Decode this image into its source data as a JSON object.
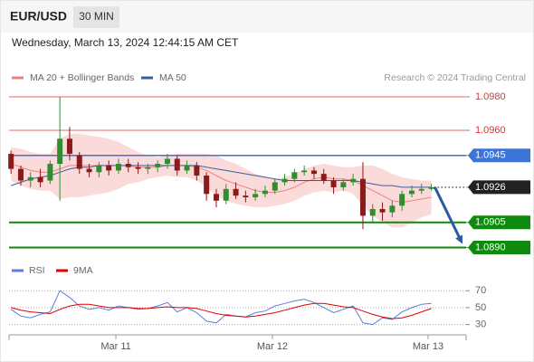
{
  "header": {
    "symbol": "EUR/USD",
    "interval": "30 MIN",
    "timestamp": "Wednesday, March 13, 2024 12:44:15 AM CET"
  },
  "chart_data": [
    {
      "type": "candlestick",
      "source": "Research © 2024 Trading Central",
      "categories": [
        null,
        null,
        null,
        null,
        null,
        null,
        null,
        null,
        null,
        null,
        null,
        null,
        null,
        null,
        null,
        null,
        null,
        null,
        null,
        null,
        null,
        null,
        null,
        null,
        null,
        null,
        null,
        null,
        null,
        null,
        null,
        null,
        null,
        null,
        null,
        null,
        null,
        null,
        null,
        null,
        null,
        null,
        null,
        null
      ],
      "open": [
        1.0946,
        1.0937,
        1.093,
        1.0932,
        1.093,
        1.094,
        1.0955,
        1.0945,
        1.0937,
        1.0935,
        1.0939,
        1.0936,
        1.094,
        1.0938,
        1.0937,
        1.0938,
        1.094,
        1.0943,
        1.0936,
        1.0939,
        1.0933,
        1.0922,
        1.0918,
        1.0925,
        1.0921,
        1.092,
        1.0922,
        1.0924,
        1.0929,
        1.0931,
        1.0935,
        1.0936,
        1.0934,
        1.093,
        1.0926,
        1.0929,
        1.0931,
        1.0909,
        1.0913,
        1.0911,
        1.0915,
        1.0922,
        1.0924,
        1.0925
      ],
      "high": [
        1.0948,
        1.0939,
        1.0935,
        1.0937,
        1.0942,
        1.098,
        1.0962,
        1.0947,
        1.094,
        1.0941,
        1.0942,
        1.0943,
        1.0943,
        1.0941,
        1.094,
        1.0942,
        1.0946,
        1.0945,
        1.0942,
        1.0941,
        1.0935,
        1.0925,
        1.0928,
        1.0929,
        1.0924,
        1.0925,
        1.0927,
        1.0931,
        1.0934,
        1.0937,
        1.0939,
        1.0938,
        1.0937,
        1.0932,
        1.0931,
        1.0934,
        1.0941,
        1.0916,
        1.0917,
        1.0918,
        1.0924,
        1.0927,
        1.0928,
        1.0928
      ],
      "low": [
        1.0934,
        1.0927,
        1.0926,
        1.0926,
        1.0928,
        1.0918,
        1.0942,
        1.0934,
        1.0932,
        1.0932,
        1.0933,
        1.0934,
        1.0935,
        1.0934,
        1.0934,
        1.0935,
        1.0937,
        1.0933,
        1.0934,
        1.093,
        1.0918,
        1.0914,
        1.0916,
        1.0919,
        1.0917,
        1.0918,
        1.092,
        1.0922,
        1.0927,
        1.0929,
        1.0933,
        1.0931,
        1.0928,
        1.0922,
        1.0924,
        1.0927,
        1.0901,
        1.0905,
        1.0906,
        1.0908,
        1.0912,
        1.092,
        1.0922,
        1.0924
      ],
      "close": [
        1.0937,
        1.093,
        1.0932,
        1.0929,
        1.094,
        1.0955,
        1.0946,
        1.0937,
        1.0935,
        1.0939,
        1.0936,
        1.094,
        1.0938,
        1.0937,
        1.0938,
        1.094,
        1.0943,
        1.0936,
        1.0939,
        1.0933,
        1.0922,
        1.0918,
        1.0925,
        1.0921,
        1.092,
        1.0922,
        1.0924,
        1.0929,
        1.0931,
        1.0935,
        1.0936,
        1.0934,
        1.093,
        1.0926,
        1.0929,
        1.0931,
        1.0909,
        1.0913,
        1.0911,
        1.0915,
        1.0922,
        1.0924,
        1.0925,
        1.0926
      ],
      "up_color": "#2f8f2f",
      "down_color": "#8b1a1a",
      "series": [
        {
          "name": "MA 20 + Bollinger Bands",
          "color": "#f08080",
          "band_color": "#fbdada",
          "values": [
            1.094,
            1.0938,
            1.0936,
            1.0935,
            1.0935,
            1.0937,
            1.0939,
            1.0939,
            1.0939,
            1.0939,
            1.0939,
            1.0939,
            1.0939,
            1.0938,
            1.0938,
            1.0938,
            1.0939,
            1.0939,
            1.0939,
            1.0938,
            1.0936,
            1.0933,
            1.093,
            1.0928,
            1.0926,
            1.0924,
            1.0923,
            1.0923,
            1.0924,
            1.0926,
            1.0929,
            1.0931,
            1.0932,
            1.0931,
            1.0931,
            1.093,
            1.0927,
            1.0924,
            1.0921,
            1.0918,
            1.0917,
            1.0918,
            1.0919,
            1.092
          ],
          "upper": [
            1.095,
            1.0949,
            1.0947,
            1.0946,
            1.0946,
            1.0955,
            1.0958,
            1.0958,
            1.0957,
            1.0956,
            1.0955,
            1.0953,
            1.095,
            1.0947,
            1.0945,
            1.0944,
            1.0945,
            1.0946,
            1.0946,
            1.0946,
            1.0946,
            1.0945,
            1.0942,
            1.094,
            1.0937,
            1.0934,
            1.0932,
            1.0931,
            1.0932,
            1.0934,
            1.0937,
            1.0939,
            1.094,
            1.0939,
            1.0938,
            1.0938,
            1.0939,
            1.0939,
            1.0937,
            1.0934,
            1.0932,
            1.0931,
            1.093,
            1.093
          ],
          "lower": [
            1.093,
            1.0927,
            1.0925,
            1.0924,
            1.0924,
            1.0919,
            1.092,
            1.092,
            1.0921,
            1.0922,
            1.0923,
            1.0925,
            1.0928,
            1.0929,
            1.0931,
            1.0932,
            1.0933,
            1.0932,
            1.0932,
            1.093,
            1.0926,
            1.0921,
            1.0918,
            1.0916,
            1.0915,
            1.0914,
            1.0914,
            1.0915,
            1.0916,
            1.0918,
            1.0921,
            1.0923,
            1.0924,
            1.0923,
            1.0924,
            1.0922,
            1.0915,
            1.0909,
            1.0905,
            1.0902,
            1.0902,
            1.0905,
            1.0908,
            1.091
          ]
        },
        {
          "name": "MA 50",
          "color": "#3a5fa0",
          "values": [
            1.0927,
            1.0929,
            1.0931,
            1.0932,
            1.0933,
            1.0935,
            1.0937,
            1.0938,
            1.0938,
            1.0939,
            1.0939,
            1.0939,
            1.0939,
            1.0939,
            1.0939,
            1.0939,
            1.0939,
            1.0939,
            1.0939,
            1.0939,
            1.0938,
            1.0937,
            1.0936,
            1.0935,
            1.0934,
            1.0933,
            1.0932,
            1.0931,
            1.093,
            1.093,
            1.093,
            1.093,
            1.093,
            1.093,
            1.093,
            1.093,
            1.0929,
            1.0928,
            1.0927,
            1.0927,
            1.0926,
            1.0926,
            1.0926,
            1.0926
          ]
        }
      ],
      "levels": [
        {
          "value": 1.098,
          "label": "1.0980",
          "color": "#e03030",
          "style": "text"
        },
        {
          "value": 1.096,
          "label": "1.0960",
          "color": "#e03030",
          "style": "text"
        },
        {
          "value": 1.0945,
          "label": "1.0945",
          "color": "#3d74d8",
          "style": "box"
        },
        {
          "value": 1.0926,
          "label": "1.0926",
          "color": "#222222",
          "style": "current"
        },
        {
          "value": 1.0905,
          "label": "1.0905",
          "color": "#0e8a0e",
          "style": "box"
        },
        {
          "value": 1.089,
          "label": "1.0890",
          "color": "#0e8a0e",
          "style": "box"
        }
      ],
      "arrow_color": "#2c5aa0",
      "xlim": [
        -0.2,
        46.56
      ],
      "ylim": [
        1.08838,
        1.09838
      ]
    },
    {
      "type": "line",
      "categories": [
        null,
        null,
        null,
        null,
        null,
        null,
        null,
        null,
        null,
        null,
        null,
        null,
        null,
        null,
        null,
        null,
        null,
        null,
        null,
        null,
        null,
        null,
        null,
        null,
        null,
        null,
        null,
        null,
        null,
        null,
        null,
        null,
        null,
        null,
        null,
        null,
        null,
        null,
        null,
        null,
        null,
        null,
        null,
        null
      ],
      "series": [
        {
          "name": "RSI",
          "color": "#5b7fd6",
          "values": [
            48,
            40,
            38,
            42,
            45,
            70,
            62,
            52,
            48,
            50,
            47,
            52,
            50,
            48,
            49,
            52,
            56,
            45,
            50,
            44,
            34,
            32,
            42,
            40,
            39,
            44,
            46,
            52,
            55,
            58,
            60,
            56,
            50,
            44,
            48,
            52,
            32,
            30,
            38,
            36,
            45,
            50,
            54,
            55
          ]
        },
        {
          "name": "9MA",
          "color": "#e00000",
          "values": [
            50,
            47,
            45,
            44,
            43,
            48,
            52,
            54,
            54,
            52,
            50,
            50,
            50,
            49,
            49,
            50,
            51,
            50,
            50,
            49,
            46,
            43,
            41,
            40,
            39,
            40,
            42,
            44,
            47,
            50,
            53,
            55,
            55,
            53,
            51,
            50,
            46,
            42,
            39,
            37,
            38,
            41,
            45,
            49
          ]
        }
      ],
      "xlim": [
        -0.2,
        46.56
      ],
      "xticks": [
        {
          "value": 10.73,
          "label": "Mar 11"
        },
        {
          "value": 26.74,
          "label": "Mar 12"
        },
        {
          "value": 42.67,
          "label": "Mar 13"
        }
      ],
      "ylim": [
        20,
        82
      ],
      "yticks": [
        70,
        50,
        30
      ],
      "grid": true
    }
  ]
}
